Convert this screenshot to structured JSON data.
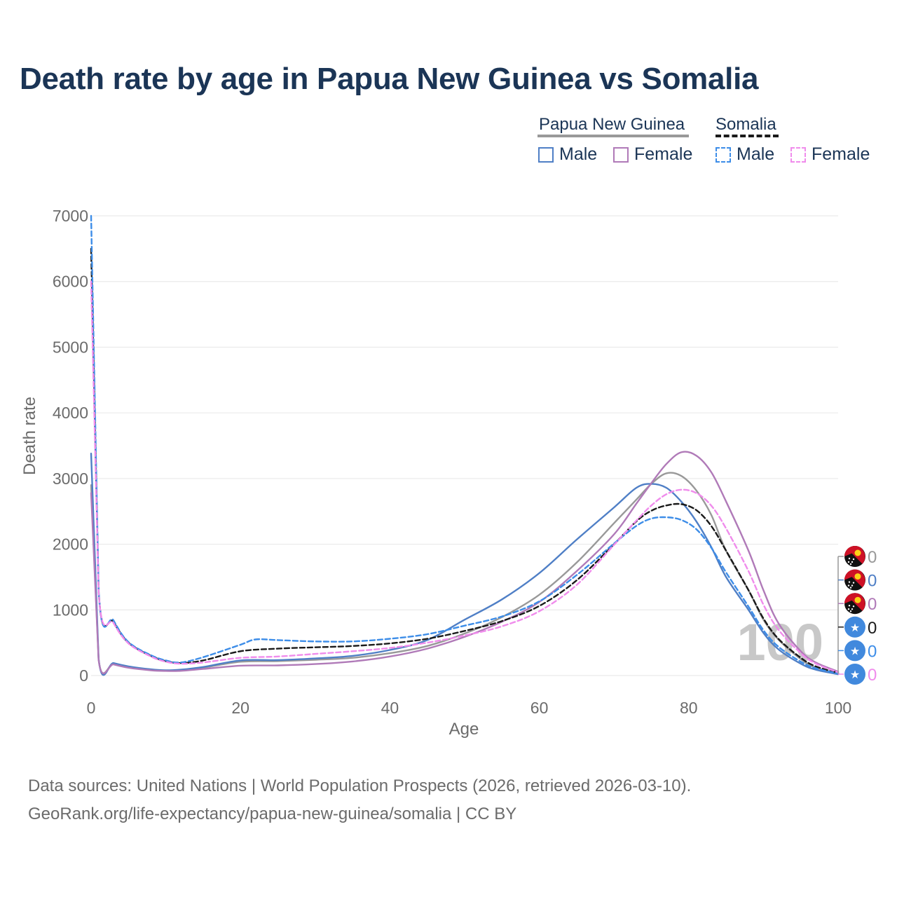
{
  "title": "Death rate by age in Papua New Guinea vs Somalia",
  "legend": {
    "png_label": "Papua New Guinea",
    "som_label": "Somalia",
    "male_label": "Male",
    "female_label": "Female"
  },
  "footer": {
    "sources": "Data sources: United Nations | World Population Prospects (2026, retrieved 2026-03-10).",
    "url": "GeoRank.org/life-expectancy/papua-new-guinea/somalia | CC BY"
  },
  "colors": {
    "title": "#1b3556",
    "total_png": "#999999",
    "male_png": "#4f7fc6",
    "female_png": "#b07ab8",
    "total_som": "#1a1a1a",
    "male_som": "#3d8de8",
    "female_som": "#f08cec",
    "grid": "#e6e6e6",
    "axis_text": "#6b6b6b"
  },
  "chart_data": {
    "type": "line",
    "title": "Death rate by age in Papua New Guinea vs Somalia",
    "xlabel": "Age",
    "ylabel": "Death rate",
    "xlim": [
      0,
      100
    ],
    "ylim": [
      0,
      7000
    ],
    "x_ticks": [
      "0",
      "20",
      "40",
      "60",
      "80",
      "100"
    ],
    "y_ticks": [
      "0",
      "1000",
      "2000",
      "3000",
      "4000",
      "5000",
      "6000",
      "7000"
    ],
    "watermark_year": "100",
    "series": [
      {
        "name": "Papua New Guinea Total",
        "color": "#999999",
        "dash": false,
        "points": [
          [
            0,
            2900
          ],
          [
            1,
            250
          ],
          [
            3,
            180
          ],
          [
            5,
            130
          ],
          [
            8,
            90
          ],
          [
            10,
            75
          ],
          [
            12,
            80
          ],
          [
            15,
            120
          ],
          [
            20,
            210
          ],
          [
            25,
            220
          ],
          [
            30,
            240
          ],
          [
            35,
            270
          ],
          [
            40,
            340
          ],
          [
            45,
            450
          ],
          [
            50,
            640
          ],
          [
            55,
            890
          ],
          [
            60,
            1230
          ],
          [
            65,
            1720
          ],
          [
            70,
            2320
          ],
          [
            73,
            2680
          ],
          [
            75,
            2920
          ],
          [
            77,
            3080
          ],
          [
            79,
            3040
          ],
          [
            81,
            2820
          ],
          [
            83,
            2450
          ],
          [
            85,
            1900
          ],
          [
            88,
            1300
          ],
          [
            90,
            850
          ],
          [
            92,
            550
          ],
          [
            95,
            250
          ],
          [
            97,
            120
          ],
          [
            100,
            30
          ]
        ]
      },
      {
        "name": "Papua New Guinea Male",
        "color": "#4f7fc6",
        "dash": false,
        "points": [
          [
            0,
            3380
          ],
          [
            1,
            260
          ],
          [
            3,
            190
          ],
          [
            5,
            140
          ],
          [
            8,
            95
          ],
          [
            10,
            80
          ],
          [
            12,
            90
          ],
          [
            15,
            130
          ],
          [
            20,
            230
          ],
          [
            25,
            235
          ],
          [
            30,
            260
          ],
          [
            35,
            300
          ],
          [
            40,
            390
          ],
          [
            45,
            540
          ],
          [
            50,
            850
          ],
          [
            55,
            1160
          ],
          [
            60,
            1560
          ],
          [
            65,
            2070
          ],
          [
            70,
            2560
          ],
          [
            73,
            2860
          ],
          [
            75,
            2920
          ],
          [
            77,
            2860
          ],
          [
            79,
            2650
          ],
          [
            81,
            2350
          ],
          [
            83,
            1960
          ],
          [
            85,
            1500
          ],
          [
            88,
            1000
          ],
          [
            90,
            650
          ],
          [
            92,
            400
          ],
          [
            95,
            180
          ],
          [
            97,
            90
          ],
          [
            100,
            20
          ]
        ]
      },
      {
        "name": "Papua New Guinea Female",
        "color": "#b07ab8",
        "dash": false,
        "points": [
          [
            0,
            2780
          ],
          [
            1,
            240
          ],
          [
            3,
            170
          ],
          [
            5,
            120
          ],
          [
            8,
            80
          ],
          [
            10,
            70
          ],
          [
            12,
            72
          ],
          [
            15,
            100
          ],
          [
            20,
            150
          ],
          [
            25,
            155
          ],
          [
            30,
            175
          ],
          [
            35,
            215
          ],
          [
            40,
            290
          ],
          [
            45,
            410
          ],
          [
            50,
            590
          ],
          [
            55,
            820
          ],
          [
            60,
            1120
          ],
          [
            65,
            1590
          ],
          [
            70,
            2150
          ],
          [
            73,
            2620
          ],
          [
            75,
            2930
          ],
          [
            77,
            3220
          ],
          [
            79,
            3400
          ],
          [
            81,
            3350
          ],
          [
            83,
            3100
          ],
          [
            85,
            2650
          ],
          [
            88,
            1900
          ],
          [
            90,
            1300
          ],
          [
            92,
            800
          ],
          [
            95,
            370
          ],
          [
            97,
            200
          ],
          [
            100,
            60
          ]
        ]
      },
      {
        "name": "Somalia Total",
        "color": "#1a1a1a",
        "dash": true,
        "points": [
          [
            0,
            6500
          ],
          [
            1,
            1300
          ],
          [
            3,
            820
          ],
          [
            5,
            500
          ],
          [
            8,
            300
          ],
          [
            10,
            220
          ],
          [
            12,
            190
          ],
          [
            15,
            230
          ],
          [
            20,
            370
          ],
          [
            25,
            410
          ],
          [
            30,
            430
          ],
          [
            35,
            450
          ],
          [
            40,
            490
          ],
          [
            45,
            560
          ],
          [
            50,
            680
          ],
          [
            55,
            830
          ],
          [
            60,
            1060
          ],
          [
            65,
            1450
          ],
          [
            70,
            2000
          ],
          [
            73,
            2350
          ],
          [
            75,
            2510
          ],
          [
            77,
            2590
          ],
          [
            79,
            2610
          ],
          [
            81,
            2520
          ],
          [
            83,
            2280
          ],
          [
            85,
            1900
          ],
          [
            88,
            1300
          ],
          [
            90,
            870
          ],
          [
            92,
            560
          ],
          [
            95,
            270
          ],
          [
            97,
            140
          ],
          [
            100,
            40
          ]
        ]
      },
      {
        "name": "Somalia Male",
        "color": "#3d8de8",
        "dash": true,
        "points": [
          [
            0,
            7000
          ],
          [
            1,
            1320
          ],
          [
            3,
            840
          ],
          [
            5,
            510
          ],
          [
            8,
            310
          ],
          [
            10,
            230
          ],
          [
            12,
            200
          ],
          [
            15,
            280
          ],
          [
            20,
            470
          ],
          [
            22,
            550
          ],
          [
            25,
            540
          ],
          [
            30,
            520
          ],
          [
            35,
            520
          ],
          [
            40,
            560
          ],
          [
            45,
            630
          ],
          [
            50,
            760
          ],
          [
            55,
            900
          ],
          [
            60,
            1130
          ],
          [
            65,
            1530
          ],
          [
            70,
            2010
          ],
          [
            73,
            2280
          ],
          [
            75,
            2390
          ],
          [
            77,
            2410
          ],
          [
            79,
            2370
          ],
          [
            81,
            2230
          ],
          [
            83,
            1950
          ],
          [
            85,
            1570
          ],
          [
            88,
            1050
          ],
          [
            90,
            690
          ],
          [
            92,
            440
          ],
          [
            95,
            210
          ],
          [
            97,
            110
          ],
          [
            100,
            30
          ]
        ]
      },
      {
        "name": "Somalia Female",
        "color": "#f08cec",
        "dash": true,
        "points": [
          [
            0,
            6000
          ],
          [
            1,
            1280
          ],
          [
            3,
            800
          ],
          [
            5,
            490
          ],
          [
            8,
            290
          ],
          [
            10,
            210
          ],
          [
            12,
            180
          ],
          [
            15,
            200
          ],
          [
            20,
            270
          ],
          [
            25,
            290
          ],
          [
            30,
            330
          ],
          [
            35,
            370
          ],
          [
            40,
            420
          ],
          [
            45,
            500
          ],
          [
            50,
            610
          ],
          [
            55,
            750
          ],
          [
            60,
            980
          ],
          [
            65,
            1380
          ],
          [
            70,
            1990
          ],
          [
            73,
            2360
          ],
          [
            75,
            2590
          ],
          [
            77,
            2760
          ],
          [
            79,
            2830
          ],
          [
            81,
            2780
          ],
          [
            83,
            2590
          ],
          [
            85,
            2240
          ],
          [
            88,
            1590
          ],
          [
            90,
            1080
          ],
          [
            92,
            700
          ],
          [
            95,
            340
          ],
          [
            97,
            180
          ],
          [
            100,
            50
          ]
        ]
      }
    ],
    "end_labels": [
      {
        "series": "Papua New Guinea Total",
        "value": "0",
        "flag": "png"
      },
      {
        "series": "Papua New Guinea Male",
        "value": "0",
        "flag": "png"
      },
      {
        "series": "Papua New Guinea Female",
        "value": "0",
        "flag": "png"
      },
      {
        "series": "Somalia Total",
        "value": "0",
        "flag": "som"
      },
      {
        "series": "Somalia Male",
        "value": "0",
        "flag": "som"
      },
      {
        "series": "Somalia Female",
        "value": "0",
        "flag": "som"
      }
    ]
  }
}
